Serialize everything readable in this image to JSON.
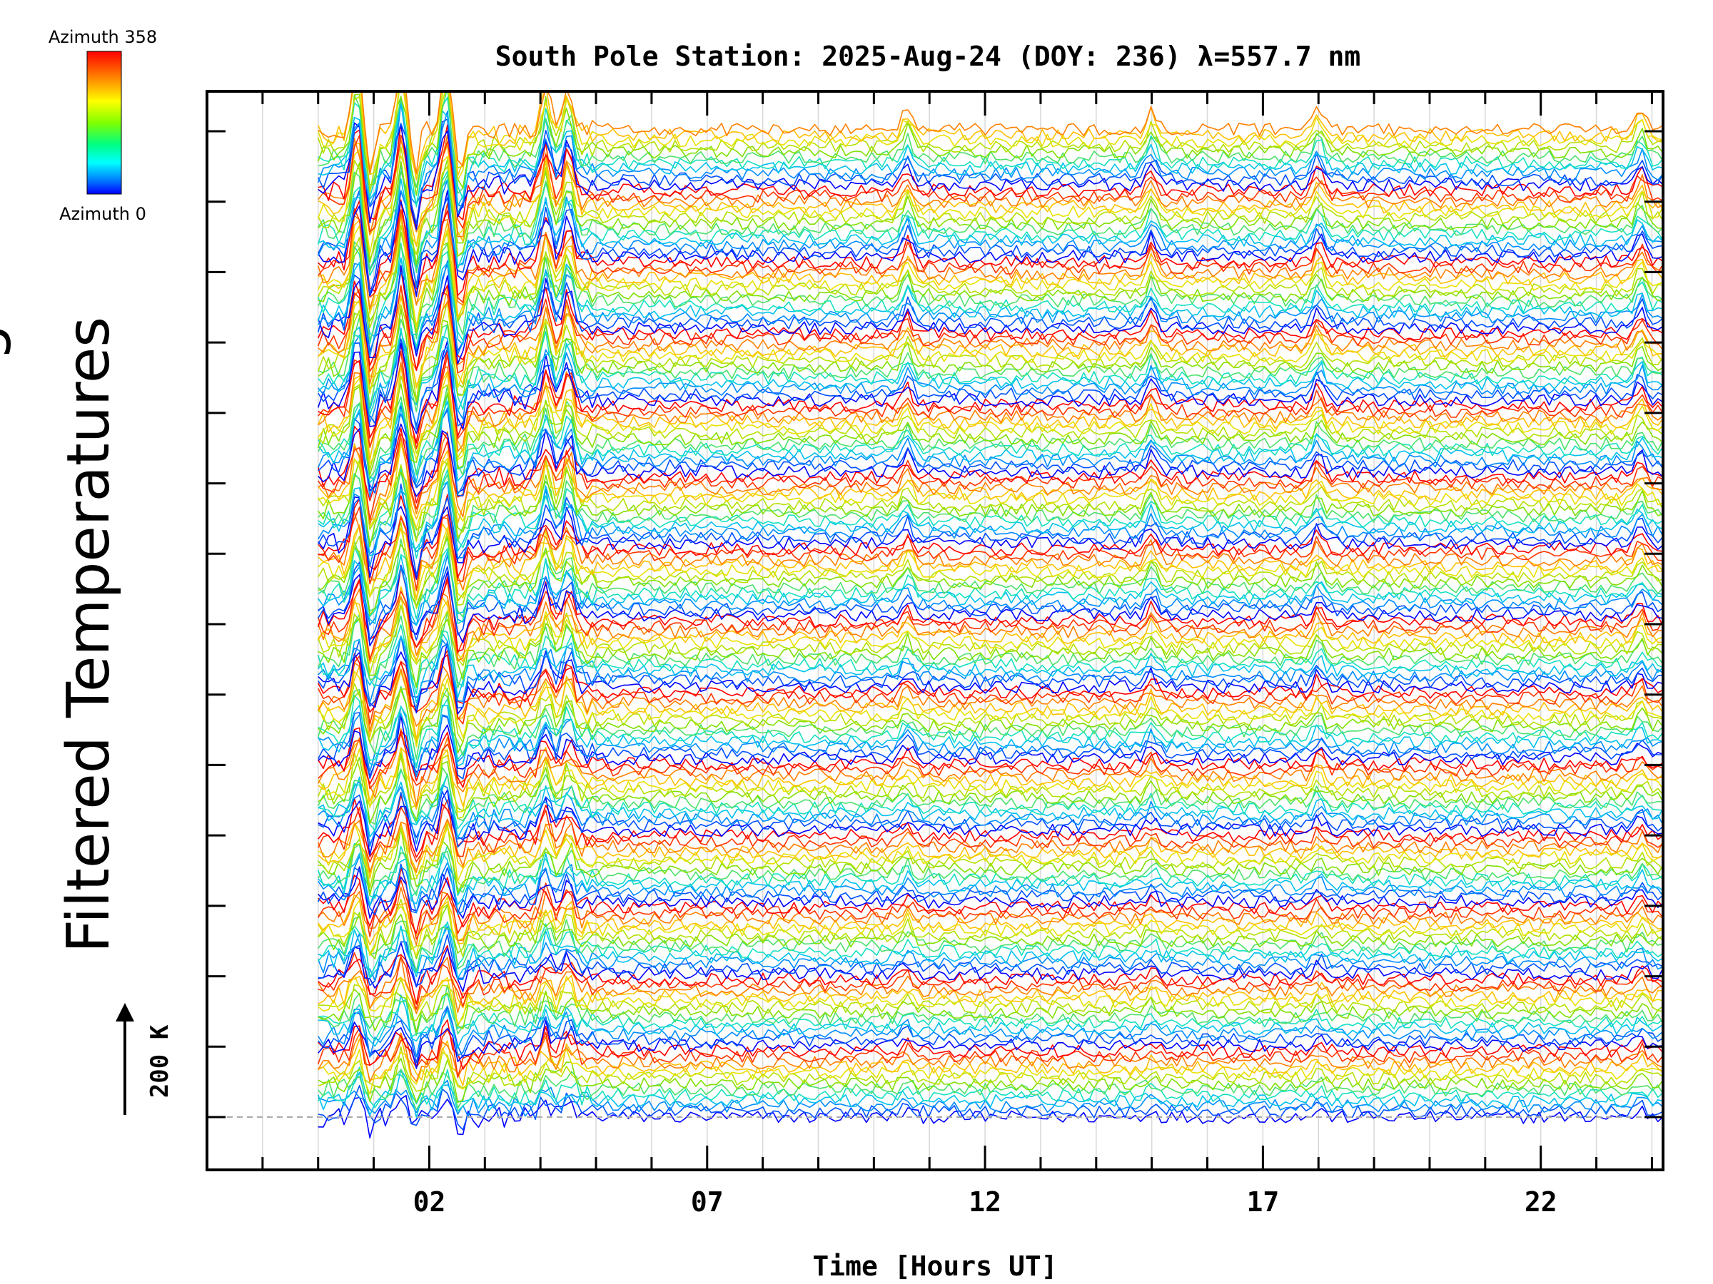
{
  "chart_data": {
    "type": "line",
    "title": "South Pole Station: 2025-Aug-24 (DOY: 236) λ=557.7 nm",
    "xlabel": "Time [Hours UT]",
    "ylabel": "Filtered Temperatures",
    "ylabel_clipped_fragment": "g",
    "xlim": [
      -2,
      24.2
    ],
    "x_ticks": [
      "02",
      "07",
      "12",
      "17",
      "22"
    ],
    "x_tick_values": [
      2,
      7,
      12,
      17,
      22
    ],
    "x_minor_step": 1,
    "data_start_hour": 0,
    "data_end_hour": 24.2,
    "grid": "vertical",
    "scale_bar": {
      "label": "200 K",
      "value_K": 200
    },
    "colorbar": {
      "top_label": "Azimuth 358",
      "bottom_label": "Azimuth 0",
      "colors": [
        "#ff0000",
        "#ff8000",
        "#ffff00",
        "#80ff00",
        "#00ff80",
        "#00ffff",
        "#0080ff",
        "#0000ff"
      ]
    },
    "num_azimuth_traces": 180,
    "groups": 14,
    "series_per_group": 13,
    "event_hours": [
      0.7,
      1.5,
      2.3,
      4.1,
      4.5,
      10.6,
      15.0,
      18.0,
      23.8
    ],
    "palette_order": [
      "#0000ff",
      "#0060ff",
      "#00a0ff",
      "#00e0e0",
      "#40e080",
      "#80e000",
      "#c0e000",
      "#ffe000",
      "#ffa000",
      "#ff4000",
      "#ff0000"
    ]
  }
}
